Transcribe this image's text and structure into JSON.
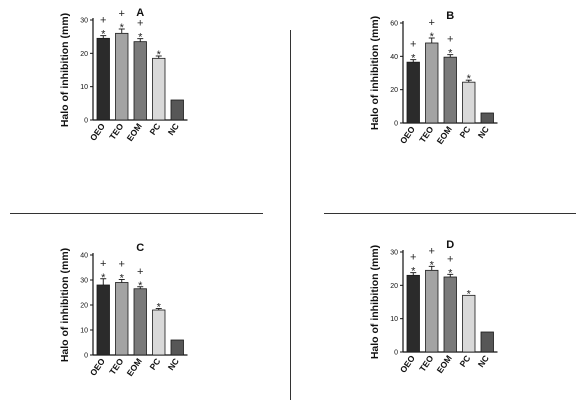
{
  "chart_data": [
    {
      "type": "bar",
      "title": "A",
      "ylabel": "Halo of inhibition (mm)",
      "ylim": [
        0,
        30
      ],
      "yticks": [
        "0",
        "10",
        "20",
        "30"
      ],
      "categories": [
        "OEO",
        "TEO",
        "EOM",
        "PC",
        "NC"
      ],
      "values": [
        24.5,
        26,
        23.5,
        18.5,
        6
      ],
      "errors": [
        0.8,
        1.3,
        0.9,
        0.7,
        0
      ],
      "significance": [
        "+*",
        "+*",
        "+*",
        "*",
        ""
      ],
      "colors": [
        "#2b2b2b",
        "#a3a3a3",
        "#7a7a7a",
        "#d9d9d9",
        "#575757"
      ]
    },
    {
      "type": "bar",
      "title": "B",
      "ylabel": "Halo of inhibition (mm)",
      "ylim": [
        0,
        60
      ],
      "yticks": [
        "0",
        "20",
        "40",
        "60"
      ],
      "categories": [
        "OEO",
        "TEO",
        "EOM",
        "PC",
        "NC"
      ],
      "values": [
        36.5,
        48,
        39.5,
        24.5,
        6
      ],
      "errors": [
        1.5,
        3,
        1.5,
        1.2,
        0
      ],
      "significance": [
        "+*",
        "+*",
        "+*",
        "*",
        ""
      ],
      "colors": [
        "#2b2b2b",
        "#a3a3a3",
        "#7a7a7a",
        "#d9d9d9",
        "#575757"
      ]
    },
    {
      "type": "bar",
      "title": "C",
      "ylabel": "Halo of inhibition (mm)",
      "ylim": [
        0,
        40
      ],
      "yticks": [
        "0",
        "10",
        "20",
        "30",
        "40"
      ],
      "categories": [
        "OEO",
        "TEO",
        "EOM",
        "PC",
        "NC"
      ],
      "values": [
        28,
        29,
        26.5,
        18,
        6
      ],
      "errors": [
        2.5,
        1.2,
        0.8,
        0.6,
        0
      ],
      "significance": [
        "+*",
        "+*",
        "+*",
        "*",
        ""
      ],
      "colors": [
        "#2b2b2b",
        "#a3a3a3",
        "#7a7a7a",
        "#d9d9d9",
        "#575757"
      ]
    },
    {
      "type": "bar",
      "title": "D",
      "ylabel": "Halo of inhibition (mm)",
      "ylim": [
        0,
        30
      ],
      "yticks": [
        "0",
        "10",
        "20",
        "30"
      ],
      "categories": [
        "OEO",
        "TEO",
        "EOM",
        "PC",
        "NC"
      ],
      "values": [
        23,
        24.5,
        22.5,
        17,
        6
      ],
      "errors": [
        0.8,
        1.2,
        0.8,
        0,
        0
      ],
      "significance": [
        "+*",
        "+*",
        "+*",
        "*",
        ""
      ],
      "colors": [
        "#2b2b2b",
        "#a3a3a3",
        "#7a7a7a",
        "#d9d9d9",
        "#575757"
      ]
    }
  ]
}
